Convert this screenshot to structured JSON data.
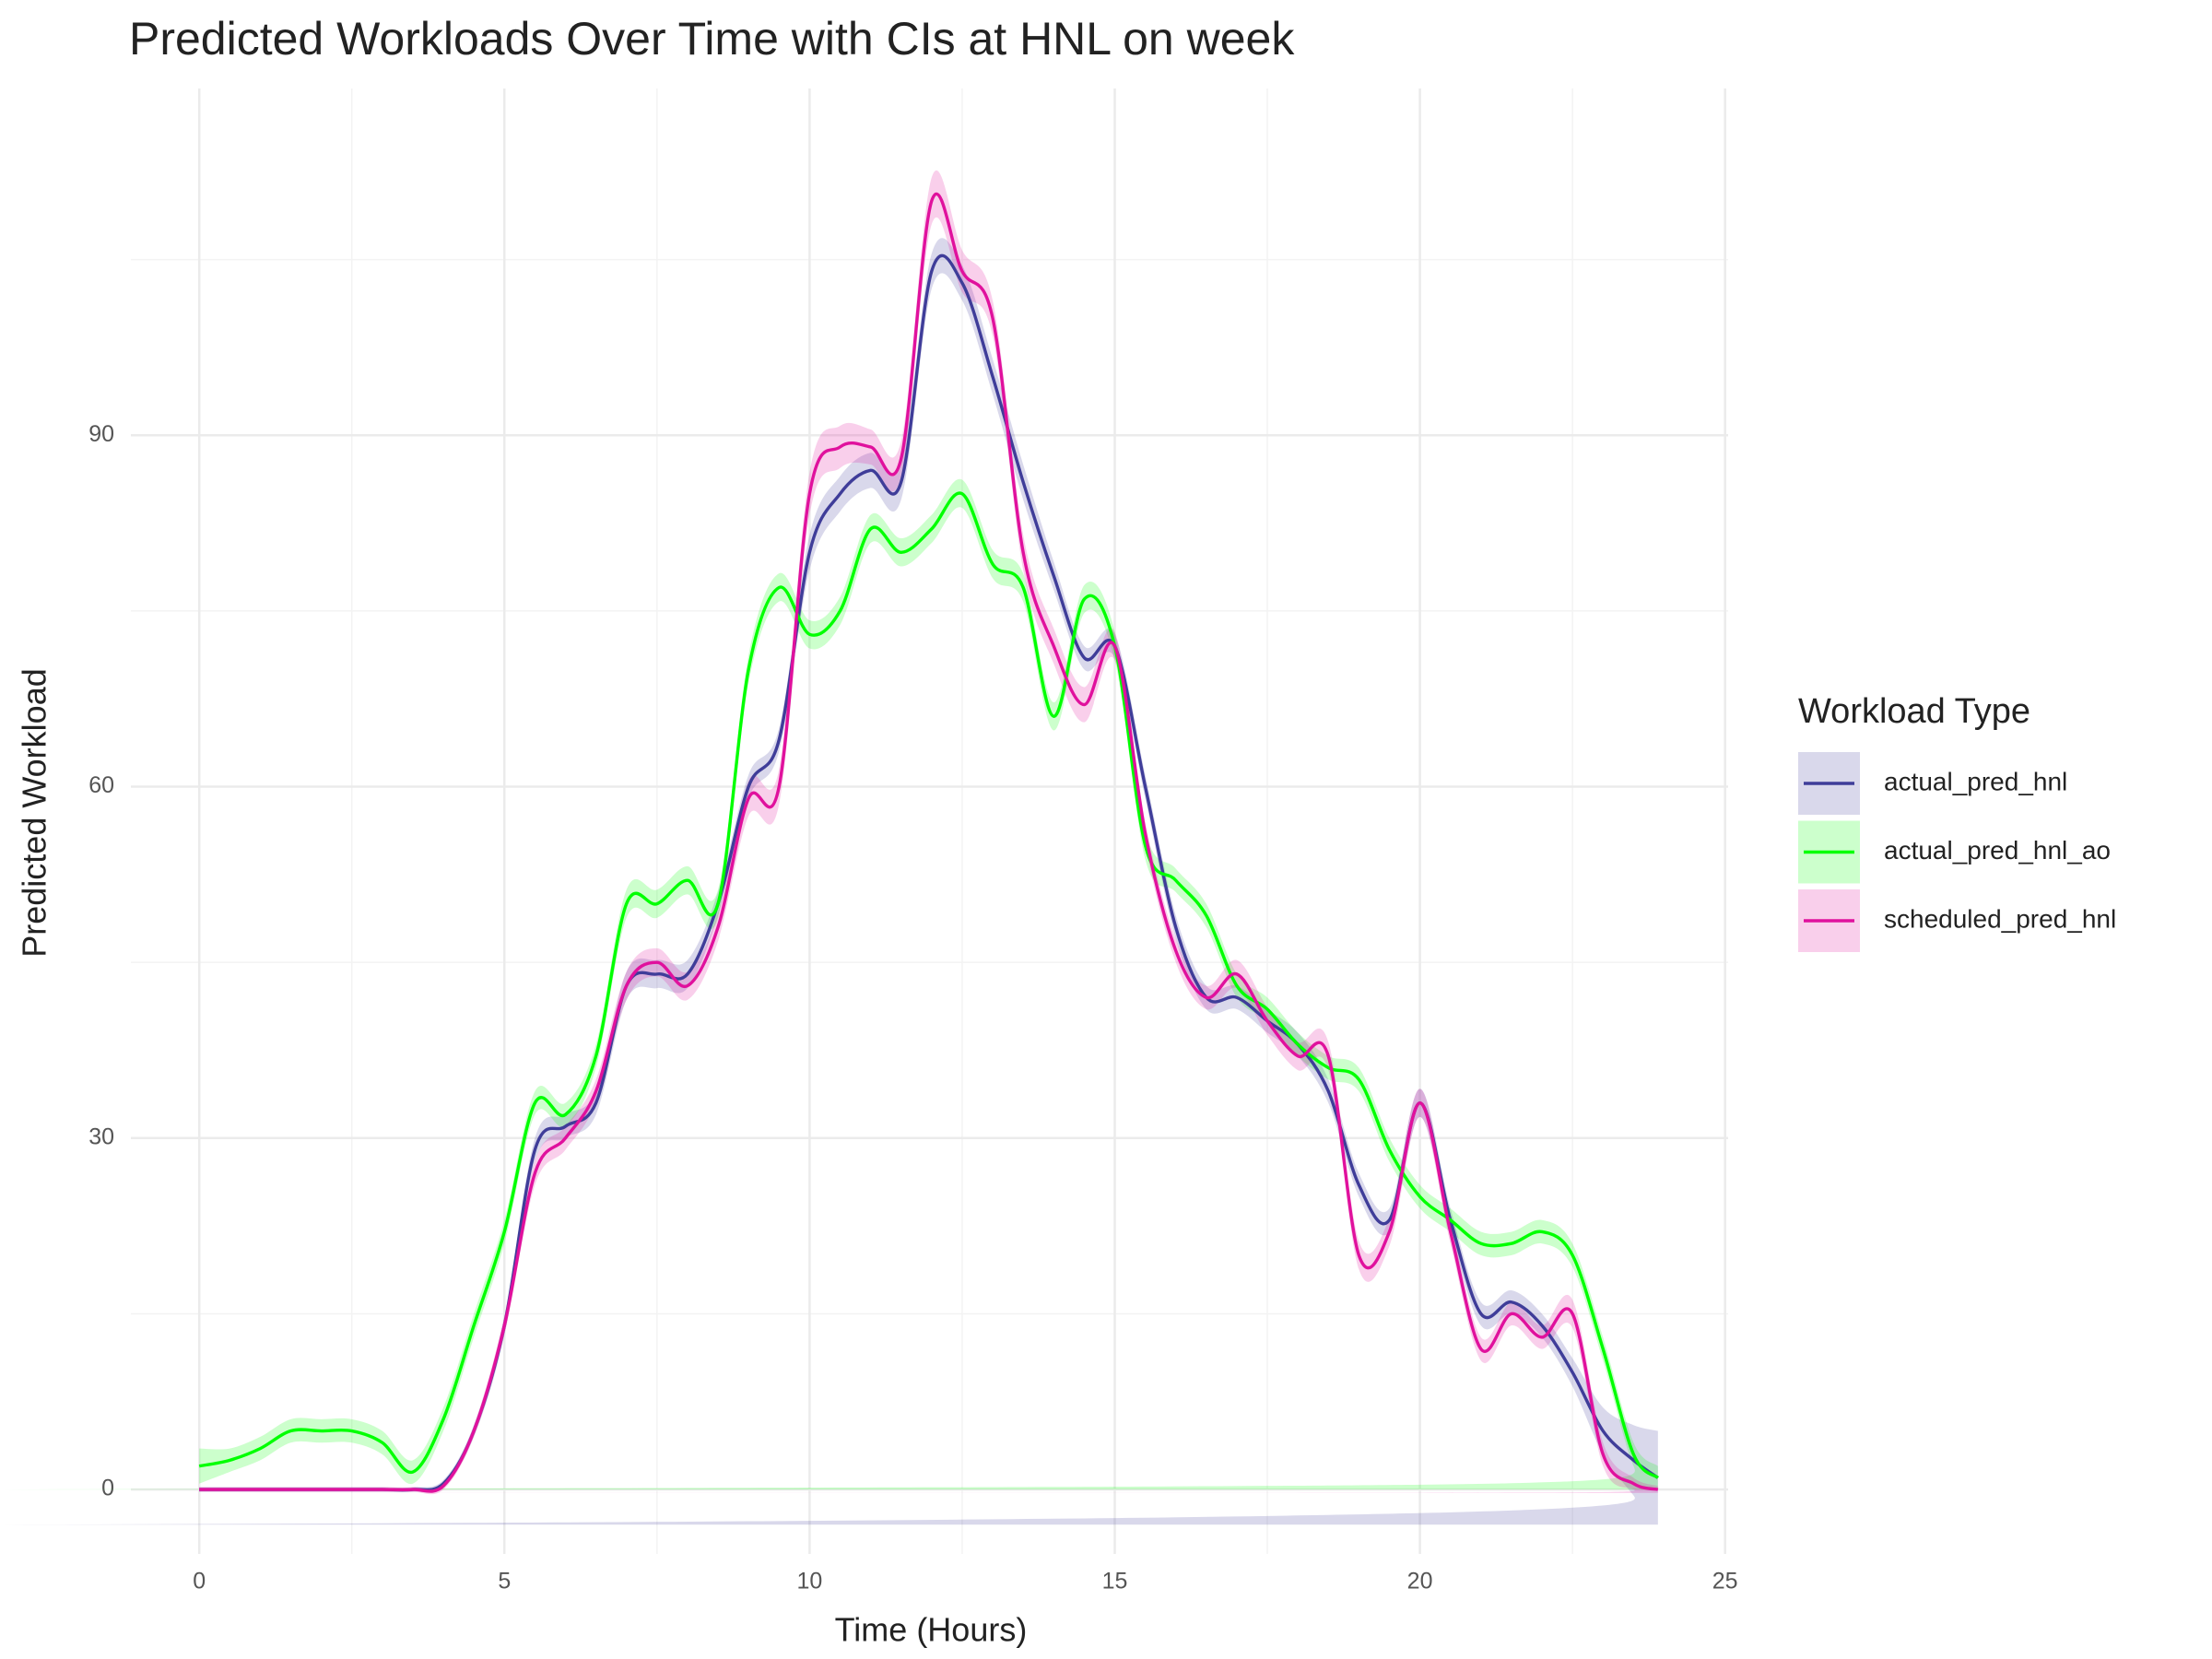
{
  "chart_data": {
    "type": "line",
    "title": "Predicted Workloads Over Time with CIs at HNL on week",
    "x_label": "Time (Hours)",
    "y_label": "Predicted Workload",
    "legend_title": "Workload Type",
    "legend": "right",
    "grid": true,
    "xlim": [
      -1.12,
      25.05
    ],
    "ylim": [
      -5.5,
      119.6
    ],
    "xticks": [
      0,
      5,
      10,
      15,
      20,
      25
    ],
    "yticks": [
      0,
      30,
      60,
      90
    ],
    "x": [
      0,
      0.5,
      1,
      1.5,
      2,
      2.5,
      3,
      3.5,
      4,
      4.5,
      5,
      5.5,
      6,
      6.5,
      7,
      7.5,
      8,
      8.5,
      9,
      9.5,
      10,
      10.5,
      11,
      11.5,
      12,
      12.5,
      13,
      13.5,
      14,
      14.5,
      15,
      15.5,
      16,
      16.5,
      17,
      17.5,
      18,
      18.5,
      19,
      19.5,
      20,
      20.5,
      21,
      21.5,
      22,
      22.5,
      23,
      23.5,
      23.9
    ],
    "series": [
      {
        "name": "actual_pred_hnl",
        "color": "#3f3d99",
        "values": [
          0,
          0,
          0,
          0,
          0,
          0,
          0,
          0,
          0.5,
          5,
          14,
          29,
          31,
          33,
          43,
          44,
          44,
          50,
          60,
          64,
          80,
          85,
          87,
          86,
          104,
          103,
          95,
          86,
          78,
          71,
          72,
          60,
          48,
          42,
          42,
          40,
          38,
          34,
          26,
          23,
          33,
          23,
          15,
          16,
          14,
          10,
          5,
          2.5,
          1
        ],
        "ci": [
          0.2,
          0.2,
          0.2,
          0.2,
          0.2,
          0.2,
          0.2,
          0.2,
          0.3,
          0.5,
          0.8,
          1,
          1,
          1,
          1.2,
          1.2,
          1.2,
          1,
          1,
          1,
          1.5,
          1.5,
          1.5,
          1.5,
          1.5,
          1.5,
          1.5,
          1.5,
          1.2,
          1,
          1,
          1,
          1,
          1,
          1,
          1,
          1,
          1,
          1,
          1,
          1.2,
          1,
          1,
          1,
          1,
          1.2,
          2,
          3,
          4
        ]
      },
      {
        "name": "actual_pred_hnl_ao",
        "color": "#00ff00",
        "values": [
          2,
          2.5,
          3.5,
          5,
          5,
          5,
          4,
          1.5,
          6,
          14,
          22,
          33,
          32,
          37,
          50,
          50,
          52,
          50,
          70,
          77,
          73,
          75,
          82,
          80,
          82,
          85,
          79,
          77,
          66,
          76,
          72,
          55,
          52,
          49,
          43,
          41,
          38,
          36,
          35,
          29,
          25,
          23,
          21,
          21,
          22,
          20,
          12,
          3,
          1
        ],
        "ci": [
          1.5,
          1,
          1,
          1,
          1,
          1,
          1,
          1,
          1,
          1,
          1,
          1,
          1,
          1,
          1.2,
          1.2,
          1.2,
          1.2,
          1.2,
          1.2,
          1.2,
          1.2,
          1.2,
          1.2,
          1.2,
          1.2,
          1.2,
          1.2,
          1.2,
          1.2,
          1.2,
          1.2,
          1,
          1,
          1,
          1,
          1,
          1,
          1,
          1,
          1,
          1,
          1,
          1,
          1,
          1,
          1,
          1,
          1
        ]
      },
      {
        "name": "scheduled_pred_hnl",
        "color": "#e0119d",
        "values": [
          0,
          0,
          0,
          0,
          0,
          0,
          0,
          0,
          0.3,
          5,
          14,
          27,
          30,
          34,
          43,
          45,
          43,
          48,
          59,
          60,
          85,
          89,
          89,
          88,
          110,
          104,
          100,
          80,
          72,
          67,
          72,
          56,
          46,
          42,
          44,
          40,
          37,
          37,
          20,
          22,
          33,
          22,
          12,
          15,
          13,
          15,
          3,
          0.5,
          0
        ],
        "ci": [
          0.2,
          0.2,
          0.2,
          0.2,
          0.2,
          0.2,
          0.2,
          0.2,
          0.3,
          0.5,
          0.8,
          1,
          1,
          1,
          1.2,
          1.2,
          1.2,
          1.2,
          1.5,
          1.5,
          1.8,
          1.8,
          1.5,
          1.5,
          2,
          1.8,
          1.5,
          1.5,
          1.5,
          1.5,
          1.2,
          1,
          1,
          1,
          1.2,
          1.2,
          1.2,
          1.2,
          1.2,
          1.2,
          1.2,
          1,
          1,
          1,
          1,
          1.2,
          1,
          0.5,
          0.3
        ]
      }
    ]
  }
}
